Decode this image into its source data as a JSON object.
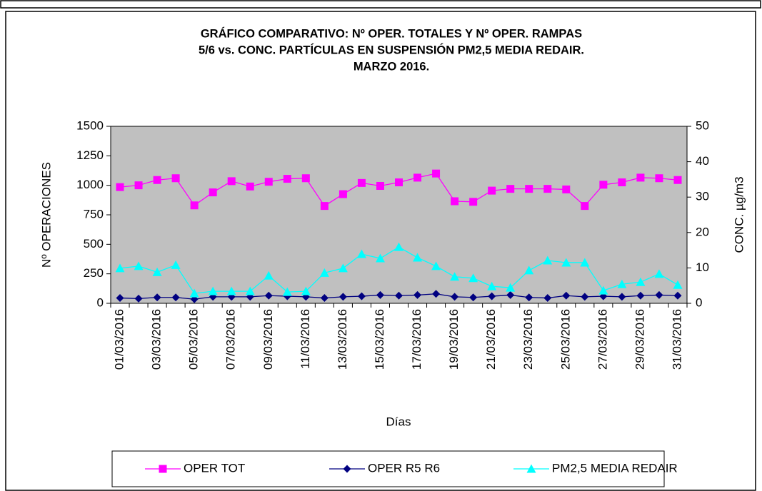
{
  "chart_data": {
    "type": "line",
    "title": [
      "GRÁFICO COMPARATIVO:  Nº OPER. TOTALES Y Nº OPER. RAMPAS",
      "5/6 vs. CONC.  PARTÍCULAS  EN SUSPENSIÓN PM2,5 MEDIA REDAIR.",
      "MARZO 2016."
    ],
    "x_label": "Días",
    "y_label": "Nº OPERACIONES",
    "y2_label": "CONC.  µg/m3",
    "categories": [
      "01/03/2016",
      null,
      "03/03/2016",
      null,
      "05/03/2016",
      null,
      "07/03/2016",
      null,
      "09/03/2016",
      null,
      "11/03/2016",
      null,
      "13/03/2016",
      null,
      "15/03/2016",
      null,
      "17/03/2016",
      null,
      "19/03/2016",
      null,
      "21/03/2016",
      null,
      "23/03/2016",
      null,
      "25/03/2016",
      null,
      "27/03/2016",
      null,
      "29/03/2016",
      null,
      "31/03/2016"
    ],
    "series": [
      {
        "name": "OPER TOT",
        "color": "#ff00ff",
        "marker": "square",
        "values": [
          985,
          1000,
          1045,
          1060,
          830,
          940,
          1035,
          990,
          1030,
          1055,
          1060,
          825,
          925,
          1020,
          995,
          1025,
          1065,
          1100,
          865,
          860,
          955,
          970,
          970,
          970,
          965,
          825,
          1005,
          1025,
          1065,
          1060,
          1045
        ]
      },
      {
        "name": "OPER R5 R6",
        "color": "#000080",
        "marker": "diamond",
        "values": [
          45,
          40,
          50,
          50,
          35,
          55,
          55,
          55,
          65,
          60,
          55,
          45,
          55,
          60,
          70,
          65,
          70,
          80,
          55,
          50,
          60,
          70,
          50,
          45,
          65,
          55,
          60,
          55,
          65,
          70,
          65
        ]
      },
      {
        "name": "PM2,5 MEDIA REDAIR",
        "color": "#00ffff",
        "marker": "triangle",
        "axis": "y2",
        "values": [
          9.9,
          10.5,
          8.8,
          10.8,
          2.8,
          3.4,
          3.4,
          3.4,
          7.8,
          3.2,
          3.4,
          8.6,
          9.9,
          13.9,
          12.7,
          15.9,
          12.9,
          10.5,
          7.5,
          7.1,
          4.8,
          4.4,
          9.3,
          12.1,
          11.5,
          11.5,
          3.6,
          5.4,
          6.0,
          8.3,
          5.2
        ]
      }
    ],
    "ylim": [
      0,
      1500
    ],
    "yticks": [
      0,
      250,
      500,
      750,
      1000,
      1250,
      1500
    ],
    "y2lim": [
      0,
      50
    ],
    "y2ticks": [
      0,
      10,
      20,
      30,
      40,
      50
    ],
    "grid": false,
    "plot_background": "#c0c0c0",
    "legend": "bottom"
  }
}
